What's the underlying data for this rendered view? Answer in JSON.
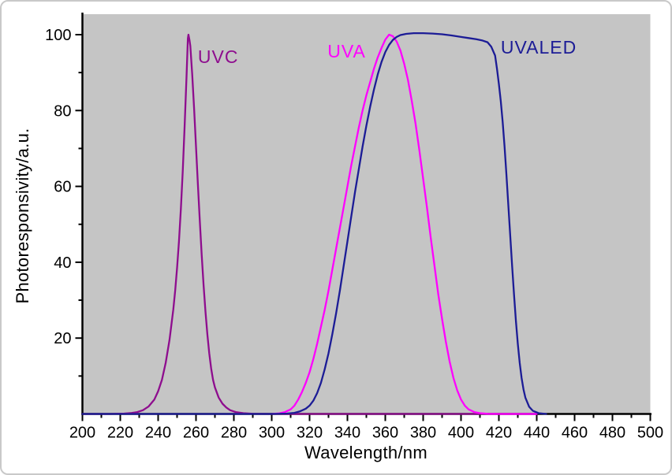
{
  "figure": {
    "background": "#ffffff",
    "frame_border": "#c9c9c9",
    "plot_bg": "#c5c5c5",
    "axis_color": "#000000",
    "tick_label_color": "#000000"
  },
  "chart_data": {
    "type": "line",
    "title": "",
    "xlabel": "Wavelength/nm",
    "ylabel": "Photoresponsivity/a.u.",
    "xlim": [
      200,
      500
    ],
    "ylim": [
      0,
      105.4
    ],
    "x_major_ticks": [
      200,
      220,
      240,
      260,
      280,
      300,
      320,
      340,
      360,
      380,
      400,
      420,
      440,
      460,
      480,
      500
    ],
    "x_minor_step": 10,
    "y_major_ticks": [
      20,
      40,
      60,
      80,
      100
    ],
    "y_minor_step": 10,
    "grid": false,
    "legend_position": "inline-annotations",
    "annotations": [
      {
        "id": "uvc",
        "text": "UVC",
        "color": "#8e0d8e",
        "nm": 261,
        "value": 92.5
      },
      {
        "id": "uva",
        "text": "UVA",
        "color": "#ff00ff",
        "nm": 329.5,
        "value": 94
      },
      {
        "id": "uvaled",
        "text": "UVALED",
        "color": "#1c1c96",
        "nm": 421,
        "value": 95
      }
    ],
    "series": [
      {
        "name": "UVC",
        "color": "#8e0d8e",
        "points": [
          [
            200,
            0
          ],
          [
            215,
            0
          ],
          [
            222,
            0.1
          ],
          [
            226,
            0.25
          ],
          [
            229,
            0.5
          ],
          [
            232,
            1
          ],
          [
            235,
            2
          ],
          [
            238,
            3.8
          ],
          [
            240,
            6
          ],
          [
            242,
            9
          ],
          [
            244,
            13.5
          ],
          [
            246,
            19.5
          ],
          [
            248,
            27.5
          ],
          [
            249,
            32.5
          ],
          [
            250,
            38.5
          ],
          [
            251,
            45.5
          ],
          [
            252,
            54
          ],
          [
            253,
            64
          ],
          [
            254,
            76
          ],
          [
            255,
            89
          ],
          [
            255.7,
            99
          ],
          [
            256,
            100
          ],
          [
            256.6,
            98.5
          ],
          [
            257,
            97
          ],
          [
            258,
            89.5
          ],
          [
            259,
            80.5
          ],
          [
            260,
            70.5
          ],
          [
            261,
            60.5
          ],
          [
            262,
            51
          ],
          [
            263,
            42
          ],
          [
            264,
            34
          ],
          [
            265,
            27
          ],
          [
            266,
            21
          ],
          [
            267,
            16
          ],
          [
            268,
            12
          ],
          [
            269,
            9
          ],
          [
            270,
            7
          ],
          [
            272,
            4.3
          ],
          [
            274,
            2.7
          ],
          [
            276,
            1.7
          ],
          [
            278,
            1
          ],
          [
            281,
            0.5
          ],
          [
            285,
            0.2
          ],
          [
            290,
            0.05
          ],
          [
            300,
            0
          ],
          [
            440,
            0
          ]
        ]
      },
      {
        "name": "UVA",
        "color": "#ff00ff",
        "points": [
          [
            300,
            0
          ],
          [
            304,
            0.15
          ],
          [
            307,
            0.5
          ],
          [
            310,
            1.2
          ],
          [
            312,
            2.2
          ],
          [
            314,
            3.8
          ],
          [
            316,
            5.8
          ],
          [
            318,
            8.2
          ],
          [
            320,
            11
          ],
          [
            322,
            14.5
          ],
          [
            324,
            18.5
          ],
          [
            326,
            23
          ],
          [
            328,
            27.5
          ],
          [
            330,
            32.5
          ],
          [
            332,
            38
          ],
          [
            334,
            43.5
          ],
          [
            336,
            49
          ],
          [
            338,
            54.5
          ],
          [
            340,
            60
          ],
          [
            342,
            65.5
          ],
          [
            344,
            70.5
          ],
          [
            346,
            75.5
          ],
          [
            348,
            80
          ],
          [
            350,
            84
          ],
          [
            352,
            87.5
          ],
          [
            354,
            91
          ],
          [
            356,
            94
          ],
          [
            358,
            96.5
          ],
          [
            360,
            98.7
          ],
          [
            362,
            100
          ],
          [
            364,
            99.6
          ],
          [
            366,
            98.2
          ],
          [
            368,
            95.8
          ],
          [
            370,
            92.3
          ],
          [
            372,
            88
          ],
          [
            374,
            82.5
          ],
          [
            376,
            76.5
          ],
          [
            378,
            69.5
          ],
          [
            380,
            62
          ],
          [
            382,
            54.5
          ],
          [
            384,
            46.5
          ],
          [
            386,
            39
          ],
          [
            388,
            31.5
          ],
          [
            390,
            25
          ],
          [
            392,
            19
          ],
          [
            394,
            13.8
          ],
          [
            396,
            9.5
          ],
          [
            398,
            6.2
          ],
          [
            400,
            3.8
          ],
          [
            402,
            2.2
          ],
          [
            404,
            1.2
          ],
          [
            407,
            0.5
          ],
          [
            410,
            0.2
          ],
          [
            414,
            0.05
          ],
          [
            420,
            0
          ],
          [
            440,
            0
          ]
        ]
      },
      {
        "name": "UVALED",
        "color": "#1c1c96",
        "points": [
          [
            200,
            0
          ],
          [
            240,
            0
          ],
          [
            280,
            0
          ],
          [
            300,
            0
          ],
          [
            308,
            0.1
          ],
          [
            312,
            0.3
          ],
          [
            315,
            0.7
          ],
          [
            318,
            1.4
          ],
          [
            320,
            2.2
          ],
          [
            322,
            3.5
          ],
          [
            324,
            5.5
          ],
          [
            326,
            8.2
          ],
          [
            328,
            11.8
          ],
          [
            330,
            16
          ],
          [
            332,
            21
          ],
          [
            334,
            26.5
          ],
          [
            336,
            32.5
          ],
          [
            338,
            39
          ],
          [
            340,
            45.5
          ],
          [
            342,
            52
          ],
          [
            344,
            58.5
          ],
          [
            346,
            64.5
          ],
          [
            348,
            70.5
          ],
          [
            350,
            76
          ],
          [
            352,
            81
          ],
          [
            354,
            85.5
          ],
          [
            356,
            89.5
          ],
          [
            358,
            92.8
          ],
          [
            360,
            95.4
          ],
          [
            362,
            97.3
          ],
          [
            364,
            98.6
          ],
          [
            366,
            99.4
          ],
          [
            368,
            99.9
          ],
          [
            371,
            100.2
          ],
          [
            375,
            100.4
          ],
          [
            380,
            100.4
          ],
          [
            385,
            100.3
          ],
          [
            390,
            100.1
          ],
          [
            395,
            99.8
          ],
          [
            400,
            99.4
          ],
          [
            404,
            99.1
          ],
          [
            408,
            98.8
          ],
          [
            411,
            98.5
          ],
          [
            414,
            98
          ],
          [
            416,
            96.8
          ],
          [
            418,
            94.5
          ],
          [
            419,
            91
          ],
          [
            420,
            87
          ],
          [
            421,
            82.5
          ],
          [
            422,
            77
          ],
          [
            423,
            70.5
          ],
          [
            424,
            63
          ],
          [
            425,
            55
          ],
          [
            426,
            47
          ],
          [
            427,
            39
          ],
          [
            428,
            31.5
          ],
          [
            429,
            24.5
          ],
          [
            430,
            18.5
          ],
          [
            431,
            13.5
          ],
          [
            432,
            9.5
          ],
          [
            433,
            6.5
          ],
          [
            434,
            4.3
          ],
          [
            436,
            1.9
          ],
          [
            438,
            0.8
          ],
          [
            441,
            0.2
          ],
          [
            445,
            0
          ]
        ]
      }
    ]
  }
}
